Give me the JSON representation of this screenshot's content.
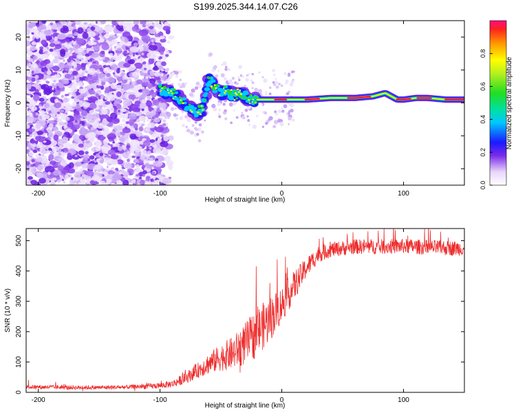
{
  "title": "S199.2025.344.14.07.C26",
  "colors": {
    "line": "#ee2b2b",
    "axis": "#000000",
    "background": "#ffffff",
    "noise": "#7a2be8"
  },
  "chart_data": [
    {
      "type": "heatmap",
      "title": "S199.2025.344.14.07.C26",
      "xlabel": "Height of straight line (km)",
      "ylabel": "Frequency (Hz)",
      "xlim": [
        -210,
        150
      ],
      "ylim": [
        -25,
        25
      ],
      "x_ticks": [
        -200,
        -100,
        0,
        100
      ],
      "x_tick_labels": [
        "-200",
        "-100",
        "0",
        "100"
      ],
      "y_ticks": [
        -20,
        -10,
        0,
        10,
        20
      ],
      "y_tick_labels": [
        "-20",
        "-10",
        "0",
        "10",
        "20"
      ],
      "colorbar": {
        "label": "Normalized spectral amplitude",
        "range": [
          0,
          1
        ],
        "ticks": [
          0,
          0.2,
          0.4,
          0.6,
          0.8
        ],
        "tick_labels": [
          "0.0",
          "0.2",
          "0.4",
          "0.6",
          "0.8"
        ]
      },
      "ridge": {
        "x": [
          -100,
          -90,
          -80,
          -70,
          -65,
          -60,
          -55,
          -50,
          -45,
          -40,
          -35,
          -30,
          -25,
          -20,
          -10,
          0,
          10,
          20,
          40,
          60,
          75,
          80,
          85,
          90,
          95,
          100,
          110,
          120,
          135,
          150
        ],
        "freq": [
          4,
          3,
          0,
          -3,
          -2,
          7,
          5,
          3,
          4,
          2,
          3,
          2,
          1,
          1,
          1,
          1,
          1,
          1,
          1.5,
          1.5,
          2,
          2.5,
          3,
          2,
          1,
          1,
          1.5,
          1.5,
          1,
          1
        ]
      }
    },
    {
      "type": "line",
      "xlabel": "Height of straight line (km)",
      "ylabel": "SNR (10 * v/v)",
      "xlim": [
        -210,
        150
      ],
      "ylim": [
        0,
        540
      ],
      "x_ticks": [
        -200,
        -100,
        0,
        100
      ],
      "x_tick_labels": [
        "-200",
        "-100",
        "0",
        "100"
      ],
      "y_ticks": [
        0,
        100,
        200,
        300,
        400,
        500
      ],
      "y_tick_labels": [
        "0",
        "100",
        "200",
        "300",
        "400",
        "500"
      ],
      "series": [
        {
          "name": "SNR",
          "x": [
            -210,
            -190,
            -170,
            -150,
            -130,
            -110,
            -100,
            -90,
            -80,
            -70,
            -60,
            -50,
            -40,
            -30,
            -20,
            -10,
            0,
            10,
            20,
            30,
            40,
            60,
            80,
            100,
            120,
            140,
            150
          ],
          "values": [
            18,
            17,
            16,
            16,
            17,
            20,
            22,
            28,
            45,
            70,
            95,
            115,
            130,
            160,
            200,
            240,
            290,
            350,
            410,
            455,
            470,
            480,
            480,
            482,
            478,
            475,
            475
          ],
          "noise": [
            7,
            7,
            7,
            7,
            7,
            9,
            10,
            12,
            18,
            25,
            35,
            45,
            55,
            70,
            80,
            75,
            60,
            50,
            35,
            28,
            25,
            25,
            25,
            25,
            25,
            25,
            25
          ]
        }
      ]
    }
  ]
}
